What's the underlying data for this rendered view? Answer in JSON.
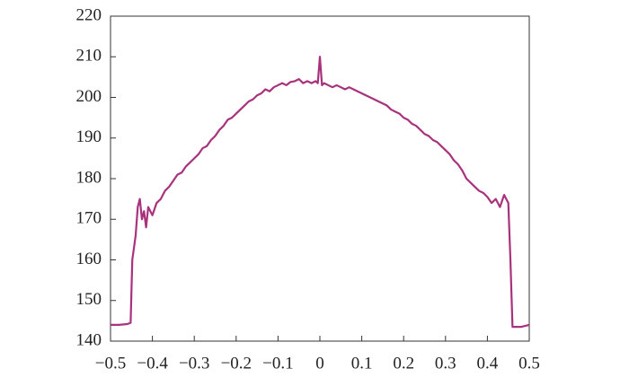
{
  "chart_data": {
    "type": "line",
    "x": [
      -0.5,
      -0.48,
      -0.46,
      -0.452,
      -0.448,
      -0.44,
      -0.435,
      -0.43,
      -0.425,
      -0.42,
      -0.415,
      -0.41,
      -0.4,
      -0.39,
      -0.38,
      -0.37,
      -0.36,
      -0.35,
      -0.34,
      -0.33,
      -0.32,
      -0.31,
      -0.3,
      -0.29,
      -0.28,
      -0.27,
      -0.26,
      -0.25,
      -0.24,
      -0.23,
      -0.22,
      -0.21,
      -0.2,
      -0.19,
      -0.18,
      -0.17,
      -0.16,
      -0.15,
      -0.14,
      -0.13,
      -0.12,
      -0.11,
      -0.1,
      -0.09,
      -0.08,
      -0.07,
      -0.06,
      -0.05,
      -0.04,
      -0.03,
      -0.02,
      -0.01,
      -0.005,
      0,
      0.005,
      0.01,
      0.02,
      0.03,
      0.04,
      0.05,
      0.06,
      0.07,
      0.08,
      0.09,
      0.1,
      0.11,
      0.12,
      0.13,
      0.14,
      0.15,
      0.16,
      0.17,
      0.18,
      0.19,
      0.2,
      0.21,
      0.22,
      0.23,
      0.24,
      0.25,
      0.26,
      0.27,
      0.28,
      0.29,
      0.3,
      0.31,
      0.32,
      0.33,
      0.34,
      0.35,
      0.36,
      0.37,
      0.38,
      0.39,
      0.4,
      0.41,
      0.42,
      0.43,
      0.44,
      0.45,
      0.455,
      0.46,
      0.48,
      0.5
    ],
    "series": [
      {
        "color": "#a8327c",
        "values": [
          144,
          144,
          144.2,
          144.5,
          160,
          166,
          173,
          175,
          170,
          172,
          168,
          173,
          171,
          174,
          175,
          177,
          178,
          179.5,
          181,
          181.5,
          183,
          184,
          185,
          186,
          187.5,
          188,
          189.5,
          190.5,
          192,
          193,
          194.5,
          195,
          196,
          197,
          198,
          199,
          199.5,
          200.5,
          201,
          202,
          201.5,
          202.5,
          203,
          203.5,
          203,
          203.8,
          204,
          204.5,
          203.5,
          204,
          203.5,
          204,
          203.5,
          210,
          203,
          203.5,
          203,
          202.5,
          203,
          202.5,
          202,
          202.5,
          202,
          201.5,
          201,
          200.5,
          200,
          199.5,
          199,
          198.5,
          198,
          197,
          196.5,
          196,
          195,
          194.5,
          193.5,
          193,
          192,
          191,
          190.5,
          189.5,
          189,
          188,
          187,
          186,
          184.5,
          183.5,
          182,
          180,
          179,
          178,
          177,
          176.5,
          175.5,
          174,
          175,
          173,
          176,
          174,
          160,
          143.5,
          143.5,
          144
        ]
      }
    ],
    "xlim": [
      -0.5,
      0.5
    ],
    "xticks": [
      {
        "value": -0.5,
        "label": "−0.5"
      },
      {
        "value": -0.4,
        "label": "−0.4"
      },
      {
        "value": -0.3,
        "label": "−0.3"
      },
      {
        "value": -0.2,
        "label": "−0.2"
      },
      {
        "value": -0.1,
        "label": "−0.1"
      },
      0,
      0.1,
      0.2,
      0.3,
      0.4,
      0.5
    ],
    "ylim": [
      140,
      220
    ],
    "yticks": [
      140,
      150,
      160,
      170,
      180,
      190,
      200,
      210,
      220
    ]
  }
}
